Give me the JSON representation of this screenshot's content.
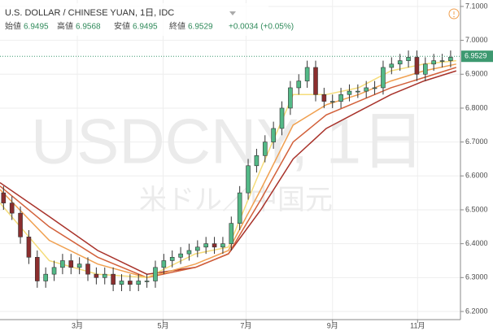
{
  "header": {
    "title": "U.S. DOLLAR / CHINESE YUAN, 1日, IDC",
    "open_label": "始値",
    "open": "6.9495",
    "high_label": "高値",
    "high": "6.9568",
    "low_label": "安値",
    "low": "6.9495",
    "close_label": "終値",
    "close": "6.9529",
    "change": "+0.0034 (+0.05%)"
  },
  "chart_data": {
    "type": "candlestick",
    "watermark": "USDCNY, 1日",
    "watermark_sub": "米ドル／中国元",
    "x": [
      5,
      17,
      29,
      41,
      53,
      65,
      77,
      89,
      101,
      113,
      125,
      137,
      149,
      161,
      173,
      185,
      197,
      209,
      221,
      233,
      245,
      257,
      269,
      281,
      293,
      305,
      317,
      329,
      341,
      353,
      365,
      377,
      389,
      401,
      413,
      425,
      437,
      449,
      461,
      473,
      485,
      497,
      509,
      521,
      533,
      545,
      557,
      569,
      581,
      593,
      605,
      617,
      629,
      641
    ],
    "open": [
      6.55,
      6.52,
      6.49,
      6.42,
      6.36,
      6.29,
      6.31,
      6.33,
      6.35,
      6.33,
      6.34,
      6.31,
      6.3,
      6.31,
      6.28,
      6.29,
      6.28,
      6.29,
      6.29,
      6.33,
      6.35,
      6.36,
      6.37,
      6.38,
      6.39,
      6.4,
      6.39,
      6.4,
      6.46,
      6.55,
      6.63,
      6.66,
      6.7,
      6.74,
      6.8,
      6.86,
      6.88,
      6.92,
      6.84,
      6.82,
      6.82,
      6.84,
      6.85,
      6.85,
      6.86,
      6.86,
      6.92,
      6.93,
      6.94,
      6.95,
      6.9,
      6.93,
      6.94,
      6.94
    ],
    "high": [
      6.57,
      6.54,
      6.51,
      6.44,
      6.38,
      6.33,
      6.35,
      6.37,
      6.37,
      6.36,
      6.36,
      6.33,
      6.33,
      6.33,
      6.31,
      6.31,
      6.31,
      6.31,
      6.35,
      6.37,
      6.38,
      6.39,
      6.4,
      6.41,
      6.42,
      6.42,
      6.42,
      6.48,
      6.57,
      6.65,
      6.68,
      6.72,
      6.76,
      6.82,
      6.88,
      6.9,
      6.94,
      6.94,
      6.86,
      6.84,
      6.86,
      6.87,
      6.87,
      6.88,
      6.88,
      6.94,
      6.95,
      6.96,
      6.97,
      6.97,
      6.95,
      6.96,
      6.96,
      6.97
    ],
    "low": [
      6.5,
      6.47,
      6.4,
      6.34,
      6.27,
      6.27,
      6.29,
      6.31,
      6.31,
      6.31,
      6.29,
      6.28,
      6.28,
      6.26,
      6.26,
      6.26,
      6.26,
      6.27,
      6.27,
      6.31,
      6.33,
      6.34,
      6.35,
      6.36,
      6.37,
      6.37,
      6.37,
      6.38,
      6.44,
      6.53,
      6.61,
      6.64,
      6.68,
      6.72,
      6.78,
      6.84,
      6.86,
      6.82,
      6.8,
      6.8,
      6.8,
      6.82,
      6.83,
      6.83,
      6.84,
      6.84,
      6.9,
      6.91,
      6.92,
      6.88,
      6.88,
      6.91,
      6.92,
      6.92
    ],
    "close": [
      6.52,
      6.49,
      6.42,
      6.36,
      6.29,
      6.31,
      6.33,
      6.35,
      6.33,
      6.34,
      6.31,
      6.3,
      6.31,
      6.28,
      6.29,
      6.28,
      6.29,
      6.29,
      6.33,
      6.35,
      6.36,
      6.37,
      6.38,
      6.39,
      6.4,
      6.39,
      6.4,
      6.46,
      6.55,
      6.63,
      6.66,
      6.7,
      6.74,
      6.8,
      6.86,
      6.88,
      6.92,
      6.84,
      6.82,
      6.82,
      6.84,
      6.85,
      6.85,
      6.86,
      6.86,
      6.92,
      6.93,
      6.94,
      6.95,
      6.9,
      6.93,
      6.94,
      6.94,
      6.95
    ],
    "up_color": "#53b987",
    "down_color": "#8b2e2e",
    "series": [
      {
        "color": "#a8322a",
        "x": [
          0,
          70,
          139,
          209,
          278,
          325,
          371,
          417,
          464,
          510,
          556,
          603,
          649
        ],
        "values": [
          6.58,
          6.48,
          6.38,
          6.31,
          6.33,
          6.37,
          6.5,
          6.65,
          6.74,
          6.79,
          6.84,
          6.88,
          6.91
        ]
      },
      {
        "color": "#d2603a",
        "x": [
          0,
          70,
          139,
          209,
          278,
          325,
          371,
          417,
          464,
          510,
          556,
          603,
          649
        ],
        "values": [
          6.57,
          6.45,
          6.36,
          6.3,
          6.33,
          6.37,
          6.53,
          6.7,
          6.78,
          6.82,
          6.86,
          6.89,
          6.92
        ]
      },
      {
        "color": "#f0a050",
        "x": [
          0,
          70,
          139,
          209,
          278,
          325,
          371,
          417,
          464,
          510,
          556,
          603,
          649
        ],
        "values": [
          6.56,
          6.41,
          6.34,
          6.3,
          6.34,
          6.38,
          6.56,
          6.75,
          6.81,
          6.84,
          6.88,
          6.91,
          6.93
        ]
      },
      {
        "color": "#f5dc7a",
        "x": [
          0,
          70,
          139,
          209,
          278,
          325,
          371,
          417,
          464,
          510,
          556,
          603,
          649
        ],
        "values": [
          6.52,
          6.35,
          6.31,
          6.3,
          6.37,
          6.39,
          6.62,
          6.84,
          6.84,
          6.86,
          6.91,
          6.93,
          6.94
        ]
      }
    ],
    "last_price": 6.9529,
    "last_color": "#3d9970",
    "xlim": [
      0,
      655
    ],
    "ylim": [
      6.176,
      7.119
    ],
    "xticks": [
      {
        "value": 110,
        "label": "3月"
      },
      {
        "value": 232,
        "label": "5月"
      },
      {
        "value": 350,
        "label": "7月"
      },
      {
        "value": 473,
        "label": "9月"
      },
      {
        "value": 594,
        "label": "11月"
      }
    ],
    "yticks": [
      {
        "value": 6.2,
        "label": "6.2000"
      },
      {
        "value": 6.3,
        "label": "6.3000"
      },
      {
        "value": 6.4,
        "label": "6.4000"
      },
      {
        "value": 6.5,
        "label": "6.5000"
      },
      {
        "value": 6.6,
        "label": "6.6000"
      },
      {
        "value": 6.7,
        "label": "6.7000"
      },
      {
        "value": 6.8,
        "label": "6.8000"
      },
      {
        "value": 6.9,
        "label": "6.9000"
      },
      {
        "value": 7.0,
        "label": "7.0000"
      },
      {
        "value": 7.1,
        "label": "7.1000"
      }
    ],
    "grid": true
  }
}
